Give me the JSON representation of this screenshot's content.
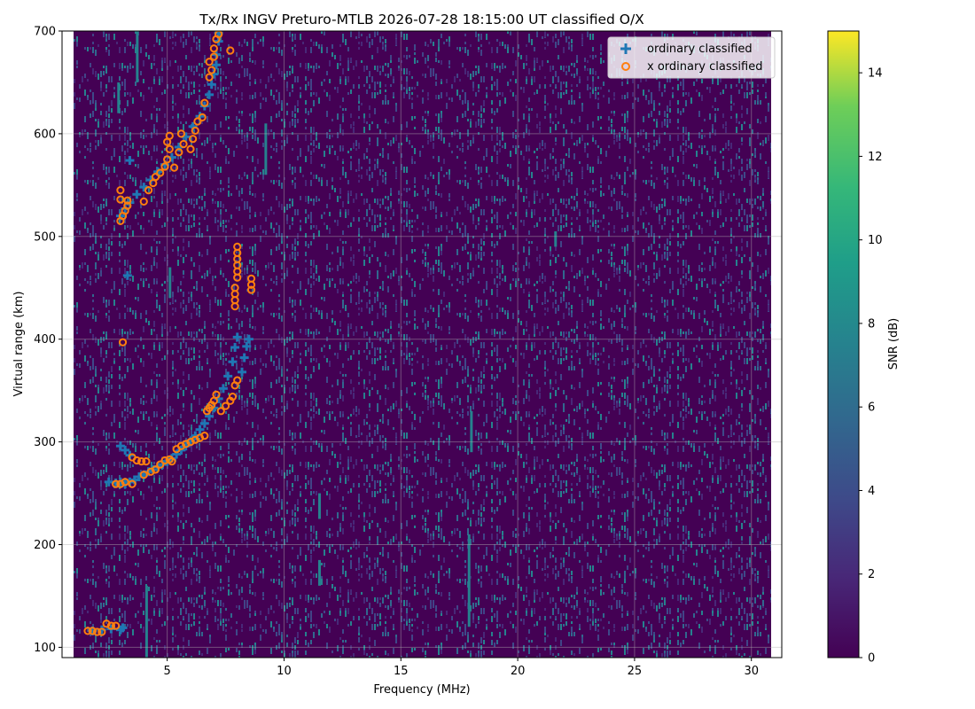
{
  "chart_data": {
    "type": "scatter",
    "title": "Tx/Rx INGV Preturo-MTLB 2026-07-28 18:15:00  UT classified O/X",
    "xlabel": "Frequency (MHz)",
    "ylabel": "Virtual range (km)",
    "xlim": [
      0.5,
      31.3
    ],
    "ylim": [
      90,
      700
    ],
    "x_ticks": [
      5,
      10,
      15,
      20,
      25,
      30
    ],
    "y_ticks": [
      100,
      200,
      300,
      400,
      500,
      600,
      700
    ],
    "grid": true,
    "legend_position": "top-right",
    "background": {
      "type": "heatmap",
      "x_range": [
        1,
        31
      ],
      "y_range": [
        90,
        700
      ],
      "colormap": "viridis",
      "dominant_color": "#440154"
    },
    "colorbar": {
      "label": "SNR (dB)",
      "min": 0,
      "max": 15,
      "ticks": [
        0,
        2,
        4,
        6,
        8,
        10,
        12,
        14
      ]
    },
    "series": [
      {
        "name": "ordinary classified",
        "marker": "plus",
        "color": "#1f77b4",
        "points": [
          [
            1.8,
            116
          ],
          [
            2.2,
            117
          ],
          [
            2.6,
            118
          ],
          [
            3.0,
            117
          ],
          [
            3.1,
            119
          ],
          [
            2.5,
            261
          ],
          [
            2.8,
            260
          ],
          [
            3.0,
            261
          ],
          [
            3.2,
            259
          ],
          [
            3.4,
            261
          ],
          [
            3.6,
            263
          ],
          [
            3.8,
            266
          ],
          [
            4.0,
            268
          ],
          [
            4.2,
            271
          ],
          [
            4.4,
            273
          ],
          [
            4.6,
            276
          ],
          [
            4.8,
            278
          ],
          [
            5.0,
            281
          ],
          [
            5.2,
            284
          ],
          [
            5.4,
            288
          ],
          [
            5.6,
            292
          ],
          [
            5.8,
            296
          ],
          [
            6.0,
            301
          ],
          [
            6.2,
            306
          ],
          [
            6.4,
            312
          ],
          [
            6.6,
            318
          ],
          [
            6.8,
            325
          ],
          [
            7.0,
            333
          ],
          [
            7.2,
            342
          ],
          [
            7.4,
            352
          ],
          [
            7.6,
            364
          ],
          [
            7.8,
            378
          ],
          [
            7.9,
            392
          ],
          [
            8.0,
            402
          ],
          [
            3.0,
            296
          ],
          [
            3.2,
            292
          ],
          [
            3.4,
            287
          ],
          [
            8.2,
            368
          ],
          [
            8.3,
            382
          ],
          [
            8.4,
            393
          ],
          [
            8.5,
            400
          ],
          [
            3.3,
            462
          ],
          [
            3.0,
            520
          ],
          [
            3.2,
            527
          ],
          [
            3.4,
            533
          ],
          [
            3.7,
            541
          ],
          [
            4.0,
            548
          ],
          [
            4.3,
            555
          ],
          [
            4.6,
            563
          ],
          [
            4.9,
            570
          ],
          [
            5.2,
            577
          ],
          [
            5.5,
            587
          ],
          [
            5.8,
            597
          ],
          [
            6.1,
            607
          ],
          [
            6.4,
            617
          ],
          [
            6.6,
            627
          ],
          [
            6.8,
            638
          ],
          [
            6.9,
            648
          ],
          [
            7.0,
            658
          ],
          [
            7.1,
            667
          ],
          [
            7.1,
            677
          ],
          [
            7.2,
            690
          ],
          [
            7.2,
            698
          ],
          [
            3.4,
            574
          ]
        ]
      },
      {
        "name": "x ordinary classified",
        "marker": "circle",
        "color": "#ff7f0e",
        "points": [
          [
            1.6,
            116
          ],
          [
            1.8,
            116
          ],
          [
            2.0,
            115
          ],
          [
            2.2,
            115
          ],
          [
            2.4,
            123
          ],
          [
            2.6,
            121
          ],
          [
            2.8,
            121
          ],
          [
            2.8,
            259
          ],
          [
            3.0,
            259
          ],
          [
            3.2,
            261
          ],
          [
            3.5,
            259
          ],
          [
            3.5,
            285
          ],
          [
            3.7,
            282
          ],
          [
            3.9,
            281
          ],
          [
            4.1,
            281
          ],
          [
            4.0,
            268
          ],
          [
            4.3,
            271
          ],
          [
            4.5,
            273
          ],
          [
            4.7,
            278
          ],
          [
            4.9,
            282
          ],
          [
            5.1,
            283
          ],
          [
            5.2,
            281
          ],
          [
            5.4,
            293
          ],
          [
            5.6,
            296
          ],
          [
            5.8,
            298
          ],
          [
            6.0,
            300
          ],
          [
            6.2,
            302
          ],
          [
            6.4,
            304
          ],
          [
            6.6,
            306
          ],
          [
            6.7,
            330
          ],
          [
            6.8,
            333
          ],
          [
            6.9,
            336
          ],
          [
            7.0,
            340
          ],
          [
            7.1,
            346
          ],
          [
            7.3,
            330
          ],
          [
            7.5,
            335
          ],
          [
            7.7,
            340
          ],
          [
            7.8,
            344
          ],
          [
            7.9,
            355
          ],
          [
            8.0,
            360
          ],
          [
            3.1,
            397
          ],
          [
            7.9,
            432
          ],
          [
            7.9,
            438
          ],
          [
            7.9,
            444
          ],
          [
            7.9,
            450
          ],
          [
            8.0,
            460
          ],
          [
            8.0,
            466
          ],
          [
            8.0,
            472
          ],
          [
            8.0,
            478
          ],
          [
            8.0,
            484
          ],
          [
            8.0,
            490
          ],
          [
            8.6,
            448
          ],
          [
            8.6,
            453
          ],
          [
            8.6,
            459
          ],
          [
            3.0,
            515
          ],
          [
            3.1,
            520
          ],
          [
            3.2,
            525
          ],
          [
            3.3,
            530
          ],
          [
            3.0,
            536
          ],
          [
            3.0,
            545
          ],
          [
            3.3,
            535
          ],
          [
            4.0,
            534
          ],
          [
            4.2,
            545
          ],
          [
            4.4,
            552
          ],
          [
            4.5,
            558
          ],
          [
            4.7,
            562
          ],
          [
            4.9,
            568
          ],
          [
            5.0,
            575
          ],
          [
            5.1,
            585
          ],
          [
            5.0,
            592
          ],
          [
            5.1,
            598
          ],
          [
            5.3,
            567
          ],
          [
            5.5,
            582
          ],
          [
            5.7,
            590
          ],
          [
            5.6,
            600
          ],
          [
            6.0,
            585
          ],
          [
            6.1,
            595
          ],
          [
            6.2,
            603
          ],
          [
            6.3,
            612
          ],
          [
            6.5,
            616
          ],
          [
            6.6,
            630
          ],
          [
            6.8,
            655
          ],
          [
            6.9,
            662
          ],
          [
            6.8,
            670
          ],
          [
            7.0,
            675
          ],
          [
            7.0,
            683
          ],
          [
            7.1,
            692
          ],
          [
            7.2,
            697
          ],
          [
            7.7,
            681
          ]
        ]
      }
    ]
  }
}
